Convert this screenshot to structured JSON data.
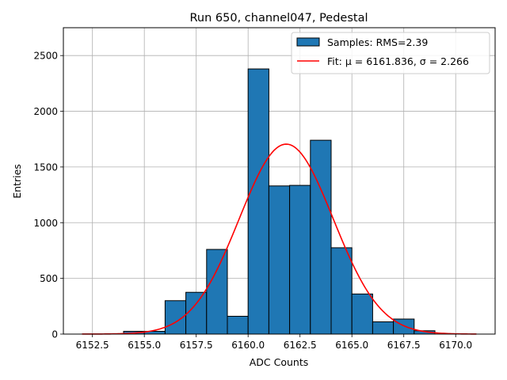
{
  "chart_data": {
    "type": "bar",
    "title": "Run 650, channel047, Pedestal",
    "xlabel": "ADC Counts",
    "ylabel": "Entries",
    "xlim": [
      6151.1,
      6171.9
    ],
    "ylim": [
      0,
      2750
    ],
    "grid": true,
    "legend_position": "top-right",
    "xticks": [
      6152.5,
      6155.0,
      6157.5,
      6160.0,
      6162.5,
      6165.0,
      6167.5,
      6170.0
    ],
    "xtick_labels": [
      "6152.5",
      "6155.0",
      "6157.5",
      "6160.0",
      "6162.5",
      "6165.0",
      "6167.5",
      "6170.0"
    ],
    "yticks": [
      0,
      500,
      1000,
      1500,
      2000,
      2500
    ],
    "ytick_labels": [
      "0",
      "500",
      "1000",
      "1500",
      "2000",
      "2500"
    ],
    "histogram": {
      "bin_edges": [
        6154.0,
        6155.0,
        6156.0,
        6157.0,
        6158.0,
        6159.0,
        6160.0,
        6161.0,
        6162.0,
        6163.0,
        6164.0,
        6165.0,
        6166.0,
        6167.0,
        6168.0,
        6169.0
      ],
      "counts": [
        25,
        25,
        300,
        375,
        760,
        160,
        2380,
        1330,
        1335,
        1740,
        775,
        360,
        110,
        135,
        30
      ],
      "color": "#1f77b4",
      "edgecolor": "#000000"
    },
    "fit": {
      "mu": 6161.836,
      "sigma": 2.266,
      "amplitude": 1705,
      "x_range": [
        6152.0,
        6171.0
      ],
      "color": "#ff0000"
    },
    "legend": [
      {
        "label": "Samples: RMS=2.39",
        "kind": "patch",
        "color": "#1f77b4"
      },
      {
        "label": "Fit: μ = 6161.836, σ = 2.266",
        "kind": "line",
        "color": "#ff0000"
      }
    ]
  }
}
